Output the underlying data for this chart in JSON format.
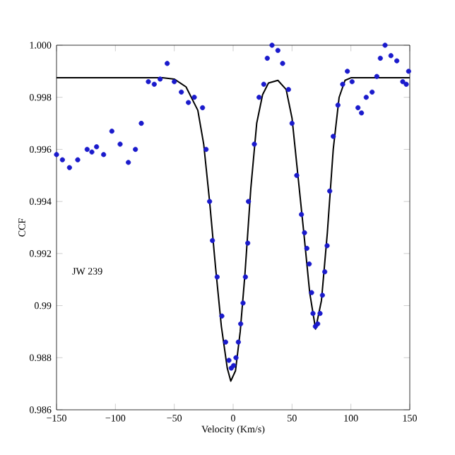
{
  "chart_data": {
    "type": "scatter",
    "xlabel": "Velocity (Km/s)",
    "ylabel": "CCF",
    "annotations": [
      "JW 239"
    ],
    "xlim": [
      -150,
      150
    ],
    "ylim": [
      0.986,
      1.0
    ],
    "xticks": [
      {
        "value": -150,
        "label": "−150"
      },
      {
        "value": -100,
        "label": "−100"
      },
      {
        "value": -50,
        "label": "−50"
      },
      0,
      50,
      100,
      150
    ],
    "yticks": [
      0.986,
      0.988,
      0.99,
      0.992,
      0.994,
      0.996,
      0.998,
      {
        "value": 1.0,
        "label": "1.000"
      }
    ],
    "series": [
      {
        "marker": "circle",
        "color": "#1a1acc",
        "x": [
          -150,
          -145,
          -139,
          -132,
          -124,
          -120,
          -116,
          -110,
          -103,
          -96,
          -89,
          -83,
          -78,
          -72,
          -67,
          -62,
          -56,
          -50,
          -44,
          -38,
          -33,
          -26,
          -23,
          -20,
          -17.6,
          -13.6,
          -9.6,
          -6.4,
          -3.6,
          -1.6,
          0.4,
          2.4,
          4.4,
          6.4,
          8.4,
          10.4,
          12.4,
          13,
          18,
          22,
          26,
          29,
          33,
          38,
          42,
          47,
          50,
          54,
          58,
          60.6,
          62.6,
          64.6,
          66.6,
          67.8,
          69.8,
          71.8,
          73.8,
          75.8,
          77.8,
          79.8,
          82,
          85,
          89,
          93,
          97,
          101,
          106,
          109,
          113,
          118,
          122,
          125,
          129,
          134,
          139,
          144,
          147,
          149
        ],
        "values": [
          0.9958,
          0.9956,
          0.9953,
          0.9956,
          0.996,
          0.9959,
          0.9961,
          0.9958,
          0.9967,
          0.9962,
          0.9955,
          0.996,
          0.997,
          0.9986,
          0.9985,
          0.9987,
          0.9993,
          0.9986,
          0.9982,
          0.9978,
          0.998,
          0.9976,
          0.996,
          0.994,
          0.9925,
          0.9911,
          0.9896,
          0.9886,
          0.9879,
          0.9876,
          0.9877,
          0.988,
          0.9886,
          0.9893,
          0.9901,
          0.9911,
          0.9924,
          0.994,
          0.9962,
          0.998,
          0.9985,
          0.9995,
          1.0,
          0.9998,
          0.9993,
          0.9983,
          0.997,
          0.995,
          0.9935,
          0.9928,
          0.9922,
          0.9916,
          0.9905,
          0.9897,
          0.9892,
          0.9893,
          0.9897,
          0.9904,
          0.9913,
          0.9923,
          0.9944,
          0.9965,
          0.9977,
          0.9985,
          0.999,
          0.9986,
          0.9976,
          0.9974,
          0.998,
          0.9982,
          0.9988,
          0.9995,
          1.0,
          0.9996,
          0.9994,
          0.9986,
          0.9985,
          0.999
        ]
      },
      {
        "type": "line",
        "marker": "none",
        "color": "#000000",
        "x": [
          -150,
          -60,
          -50,
          -40,
          -30,
          -25,
          -20,
          -15,
          -10,
          -5,
          -2,
          2,
          6,
          10,
          15,
          20,
          25,
          30,
          38,
          45,
          50,
          55,
          60,
          65,
          70,
          75,
          80,
          85,
          90,
          95,
          100,
          150
        ],
        "values": [
          0.99875,
          0.99875,
          0.9987,
          0.9984,
          0.9975,
          0.9962,
          0.994,
          0.9915,
          0.9892,
          0.9876,
          0.9871,
          0.9875,
          0.989,
          0.9912,
          0.9945,
          0.997,
          0.9981,
          0.99855,
          0.99865,
          0.9983,
          0.9972,
          0.995,
          0.9928,
          0.9905,
          0.9891,
          0.9902,
          0.9928,
          0.996,
          0.998,
          0.99865,
          0.99875,
          0.99875
        ]
      }
    ]
  }
}
